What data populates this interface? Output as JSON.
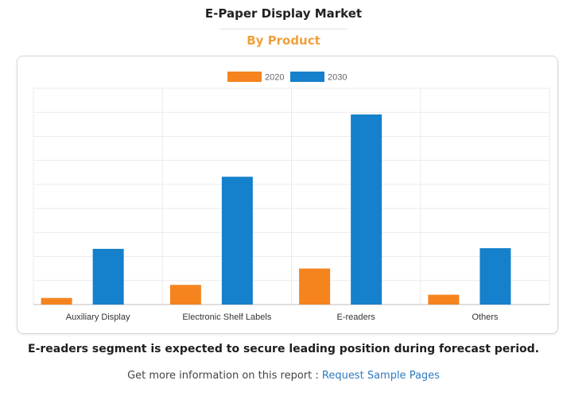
{
  "header": {
    "title": "E-Paper Display Market",
    "subtitle": "By Product"
  },
  "colors": {
    "series_2020": "#f5841f",
    "series_2030": "#1580cb",
    "subtitle": "#f0a13a",
    "link": "#2e7bbf"
  },
  "chart_data": {
    "type": "bar",
    "title": "",
    "xlabel": "",
    "ylabel": "",
    "categories": [
      "Auxiliary Display",
      "Electronic Shelf Labels",
      "E-readers",
      "Others"
    ],
    "series": [
      {
        "name": "2020",
        "values": [
          1.0,
          3.0,
          5.5,
          1.5
        ]
      },
      {
        "name": "2030",
        "values": [
          8.5,
          19.5,
          29.0,
          8.6
        ]
      }
    ],
    "ylim": [
      0,
      33
    ],
    "grid": true,
    "legend": "top-center"
  },
  "footer": {
    "caption": "E-readers segment is expected to secure leading position during forecast period.",
    "more_text": "Get more information on this report : ",
    "link_text": "Request Sample Pages"
  }
}
